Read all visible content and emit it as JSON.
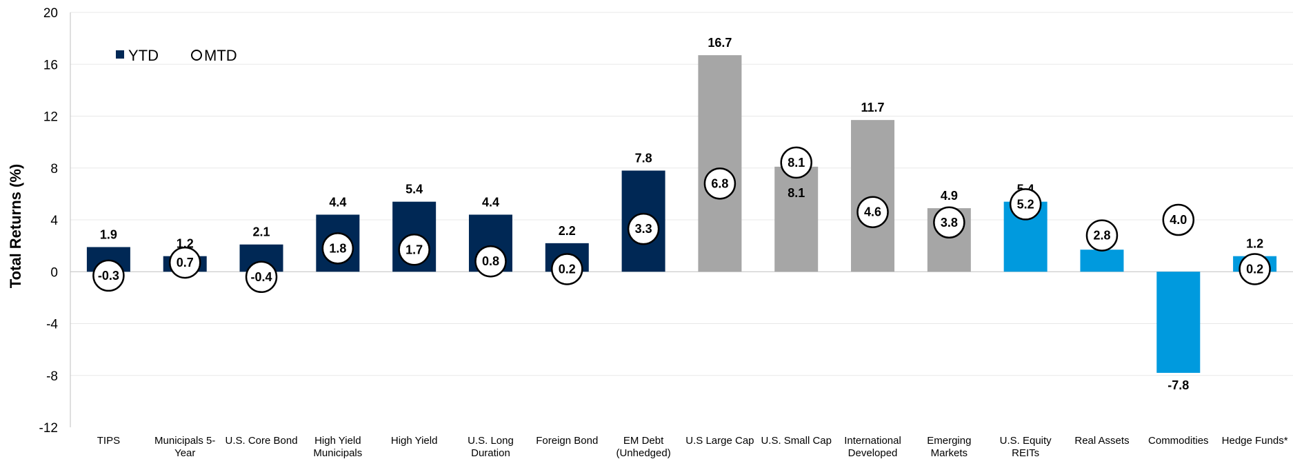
{
  "chart_data": {
    "type": "bar",
    "ylabel": "Total Returns (%)",
    "ylim": [
      -12,
      20
    ],
    "yticks": [
      -12,
      -8,
      -4,
      0,
      4,
      8,
      12,
      16,
      20
    ],
    "grid": true,
    "legend_position": "top-left",
    "legend": [
      {
        "name": "YTD",
        "symbol": "square"
      },
      {
        "name": "MTD",
        "symbol": "circle"
      }
    ],
    "colors": {
      "navy": "#002855",
      "gray": "#a6a6a6",
      "blue": "#009ade",
      "grid": "#e8e8e8",
      "axis": "#bfbfbf"
    },
    "categories": [
      {
        "label": [
          "TIPS"
        ],
        "ytd": 1.9,
        "mtd": -0.3,
        "color": "navy"
      },
      {
        "label": [
          "Municipals 5-",
          "Year"
        ],
        "ytd": 1.2,
        "mtd": 0.7,
        "color": "navy"
      },
      {
        "label": [
          "U.S. Core Bond"
        ],
        "ytd": 2.1,
        "mtd": -0.4,
        "color": "navy"
      },
      {
        "label": [
          "High Yield",
          "Municipals"
        ],
        "ytd": 4.4,
        "mtd": 1.8,
        "color": "navy"
      },
      {
        "label": [
          "High Yield"
        ],
        "ytd": 5.4,
        "mtd": 1.7,
        "color": "navy"
      },
      {
        "label": [
          "U.S. Long",
          "Duration"
        ],
        "ytd": 4.4,
        "mtd": 0.8,
        "color": "navy"
      },
      {
        "label": [
          "Foreign Bond"
        ],
        "ytd": 2.2,
        "mtd": 0.2,
        "color": "navy"
      },
      {
        "label": [
          "EM Debt",
          "(Unhedged)"
        ],
        "ytd": 7.8,
        "mtd": 3.3,
        "color": "navy"
      },
      {
        "label": [
          "U.S Large Cap"
        ],
        "ytd": 16.7,
        "mtd": 6.8,
        "color": "gray"
      },
      {
        "label": [
          "U.S. Small Cap"
        ],
        "ytd": 8.1,
        "mtd": 8.1,
        "color": "gray"
      },
      {
        "label": [
          "International",
          "Developed"
        ],
        "ytd": 11.7,
        "mtd": 4.6,
        "color": "gray"
      },
      {
        "label": [
          "Emerging",
          "Markets"
        ],
        "ytd": 4.9,
        "mtd": 3.8,
        "color": "gray"
      },
      {
        "label": [
          "U.S. Equity",
          "REITs"
        ],
        "ytd": 5.4,
        "mtd": 5.2,
        "color": "blue"
      },
      {
        "label": [
          "Real Assets"
        ],
        "ytd": 1.7,
        "mtd": 2.8,
        "color": "blue"
      },
      {
        "label": [
          "Commodities"
        ],
        "ytd": -7.8,
        "mtd": 4.0,
        "color": "blue"
      },
      {
        "label": [
          "Hedge Funds*"
        ],
        "ytd": 1.2,
        "mtd": 0.2,
        "color": "blue"
      }
    ]
  }
}
